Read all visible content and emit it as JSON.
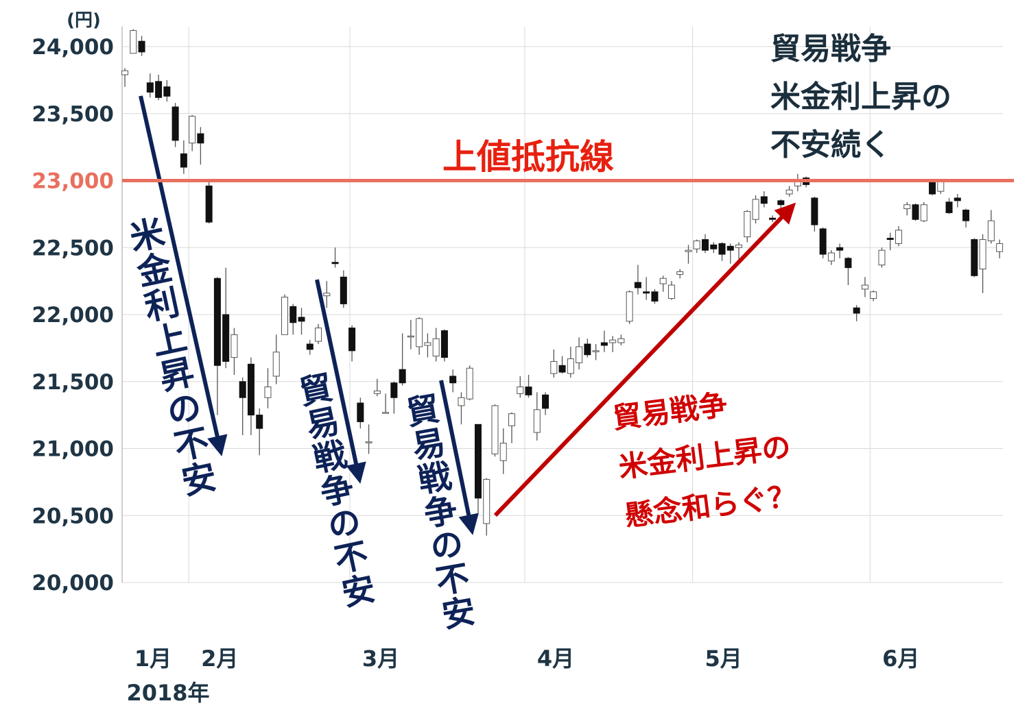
{
  "chart_data": {
    "type": "candlestick",
    "y_unit": "(円)",
    "year_label": "2018年",
    "open": [
      23790,
      23950,
      24040,
      23730,
      23740,
      23700,
      23550,
      23200,
      23280,
      23350,
      22960,
      22270,
      22000,
      21680,
      21500,
      21630,
      21250,
      21380,
      21540,
      21850,
      22060,
      21980,
      21780,
      21800,
      22140,
      22390,
      22280,
      21900,
      21340,
      21050,
      21410,
      21270,
      21490,
      21590,
      21840,
      21760,
      21770,
      21690,
      21880,
      21540,
      21320,
      21370,
      21180,
      20440,
      20960,
      20910,
      21170,
      21410,
      21460,
      21120,
      21400,
      21560,
      21620,
      21560,
      21640,
      21780,
      21730,
      21790,
      21790,
      21790,
      21950,
      22240,
      22170,
      22170,
      22230,
      22120,
      22300,
      22470,
      22490,
      22560,
      22520,
      22530,
      22510,
      22500,
      22580,
      22710,
      22880,
      22720,
      22850,
      22900,
      22960,
      23020,
      22870,
      22640,
      22400,
      22500,
      22420,
      22050,
      22190,
      22120,
      22370,
      22570,
      22530,
      22790,
      22820,
      22700,
      22990,
      22920,
      22840,
      22870,
      22780,
      22560,
      22340,
      22550,
      22470
    ],
    "high": [
      23840,
      24130,
      24080,
      23800,
      23790,
      23750,
      23580,
      23300,
      23490,
      23400,
      23000,
      22280,
      22350,
      21900,
      21530,
      21680,
      21300,
      21600,
      21850,
      22150,
      22080,
      22050,
      21810,
      21930,
      22250,
      22500,
      22330,
      21920,
      21380,
      21180,
      21520,
      21410,
      21500,
      21860,
      21960,
      21980,
      21860,
      21900,
      21890,
      21590,
      21420,
      21620,
      21180,
      20780,
      21330,
      21150,
      21270,
      21540,
      21550,
      21420,
      21420,
      21740,
      21690,
      21760,
      21830,
      21820,
      21780,
      21880,
      21840,
      21850,
      22180,
      22370,
      22280,
      22190,
      22290,
      22250,
      22340,
      22520,
      22560,
      22600,
      22540,
      22540,
      22530,
      22540,
      22780,
      22890,
      22920,
      22740,
      22860,
      22960,
      23050,
      23030,
      22880,
      22650,
      22480,
      22530,
      22430,
      22070,
      22280,
      22180,
      22500,
      22610,
      22660,
      22840,
      22830,
      22840,
      23010,
      23000,
      22870,
      22900,
      22790,
      22570,
      22600,
      22780,
      22560
    ],
    "low": [
      23700,
      23950,
      23930,
      23620,
      23600,
      23590,
      23250,
      23050,
      23220,
      23120,
      22680,
      21250,
      21600,
      21550,
      21100,
      21100,
      20950,
      21300,
      21480,
      21850,
      21850,
      21850,
      21700,
      21780,
      22050,
      22350,
      22050,
      21650,
      21150,
      20960,
      21390,
      21260,
      21260,
      21470,
      21740,
      21700,
      21680,
      21650,
      21650,
      21420,
      21180,
      21360,
      20520,
      20350,
      20940,
      20810,
      21040,
      21380,
      21380,
      21060,
      21250,
      21530,
      21560,
      21530,
      21590,
      21680,
      21660,
      21720,
      21720,
      21770,
      21930,
      22150,
      22110,
      22080,
      22170,
      22110,
      22270,
      22380,
      22460,
      22460,
      22460,
      22400,
      22380,
      22400,
      22540,
      22680,
      22800,
      22690,
      22780,
      22880,
      22920,
      22950,
      22620,
      22420,
      22370,
      22420,
      22220,
      21950,
      22130,
      22100,
      22350,
      22480,
      22510,
      22740,
      22700,
      22690,
      22890,
      22900,
      22750,
      22800,
      22650,
      22280,
      22160,
      22530,
      22420
    ],
    "close": [
      23820,
      24120,
      23960,
      23660,
      23620,
      23630,
      23300,
      23100,
      23480,
      23280,
      22690,
      21620,
      21650,
      21850,
      21380,
      21250,
      21150,
      21460,
      21720,
      22130,
      21940,
      21950,
      21740,
      21900,
      22160,
      22380,
      22080,
      21730,
      21200,
      21050,
      21430,
      21270,
      21380,
      21490,
      21840,
      21970,
      21790,
      21820,
      21680,
      21490,
      21380,
      21600,
      20630,
      20770,
      21320,
      21040,
      21260,
      21460,
      21400,
      21290,
      21300,
      21650,
      21570,
      21670,
      21760,
      21700,
      21730,
      21770,
      21810,
      21820,
      22170,
      22200,
      22160,
      22100,
      22270,
      22220,
      22320,
      22480,
      22550,
      22480,
      22490,
      22450,
      22480,
      22520,
      22770,
      22860,
      22830,
      22710,
      22820,
      22930,
      22990,
      22970,
      22670,
      22450,
      22460,
      22480,
      22350,
      22010,
      22220,
      22170,
      22480,
      22560,
      22630,
      22820,
      22710,
      22820,
      22900,
      22990,
      22760,
      22850,
      22700,
      22290,
      22560,
      22700,
      22530
    ],
    "up_color": "#ffffff",
    "down_color": "#111111",
    "xlim": [
      -0.33,
      104.4
    ],
    "xticks": [
      {
        "value": -0.33,
        "label": "1月"
      },
      {
        "value": 7.6,
        "label": "2月"
      },
      {
        "value": 26.75,
        "label": "3月"
      },
      {
        "value": 47.55,
        "label": "4月"
      },
      {
        "value": 67.5,
        "label": "5月"
      },
      {
        "value": 88.6,
        "label": "6月"
      }
    ],
    "ylim": [
      20000,
      24150
    ],
    "yticks": [
      {
        "value": 20000,
        "label": "20,000"
      },
      {
        "value": 20500,
        "label": "20,500"
      },
      {
        "value": 21000,
        "label": "21,000"
      },
      {
        "value": 21500,
        "label": "21,500"
      },
      {
        "value": 22000,
        "label": "22,000"
      },
      {
        "value": 22500,
        "label": "22,500"
      },
      {
        "value": 23000,
        "label": "23,000"
      },
      {
        "value": 23500,
        "label": "23,500"
      },
      {
        "value": 24000,
        "label": "24,000"
      }
    ],
    "grid": true,
    "resistance": {
      "value": 23000,
      "label": "上値抵抗線",
      "color": "#e8705f"
    },
    "annotations": [
      {
        "lines": [
          "米金利上昇の不安"
        ],
        "color": "#0d2257"
      },
      {
        "lines": [
          "貿易戦争の不安"
        ],
        "color": "#0d2257"
      },
      {
        "lines": [
          "貿易戦争の不安"
        ],
        "color": "#0d2257"
      },
      {
        "lines": [
          "貿易戦争",
          "米金利上昇の",
          "懸念和らぐ？"
        ],
        "color": "#d00000"
      },
      {
        "lines": [
          "貿易戦争",
          "米金利上昇の",
          "不安続く"
        ],
        "color": "#1b2e3c"
      }
    ]
  }
}
